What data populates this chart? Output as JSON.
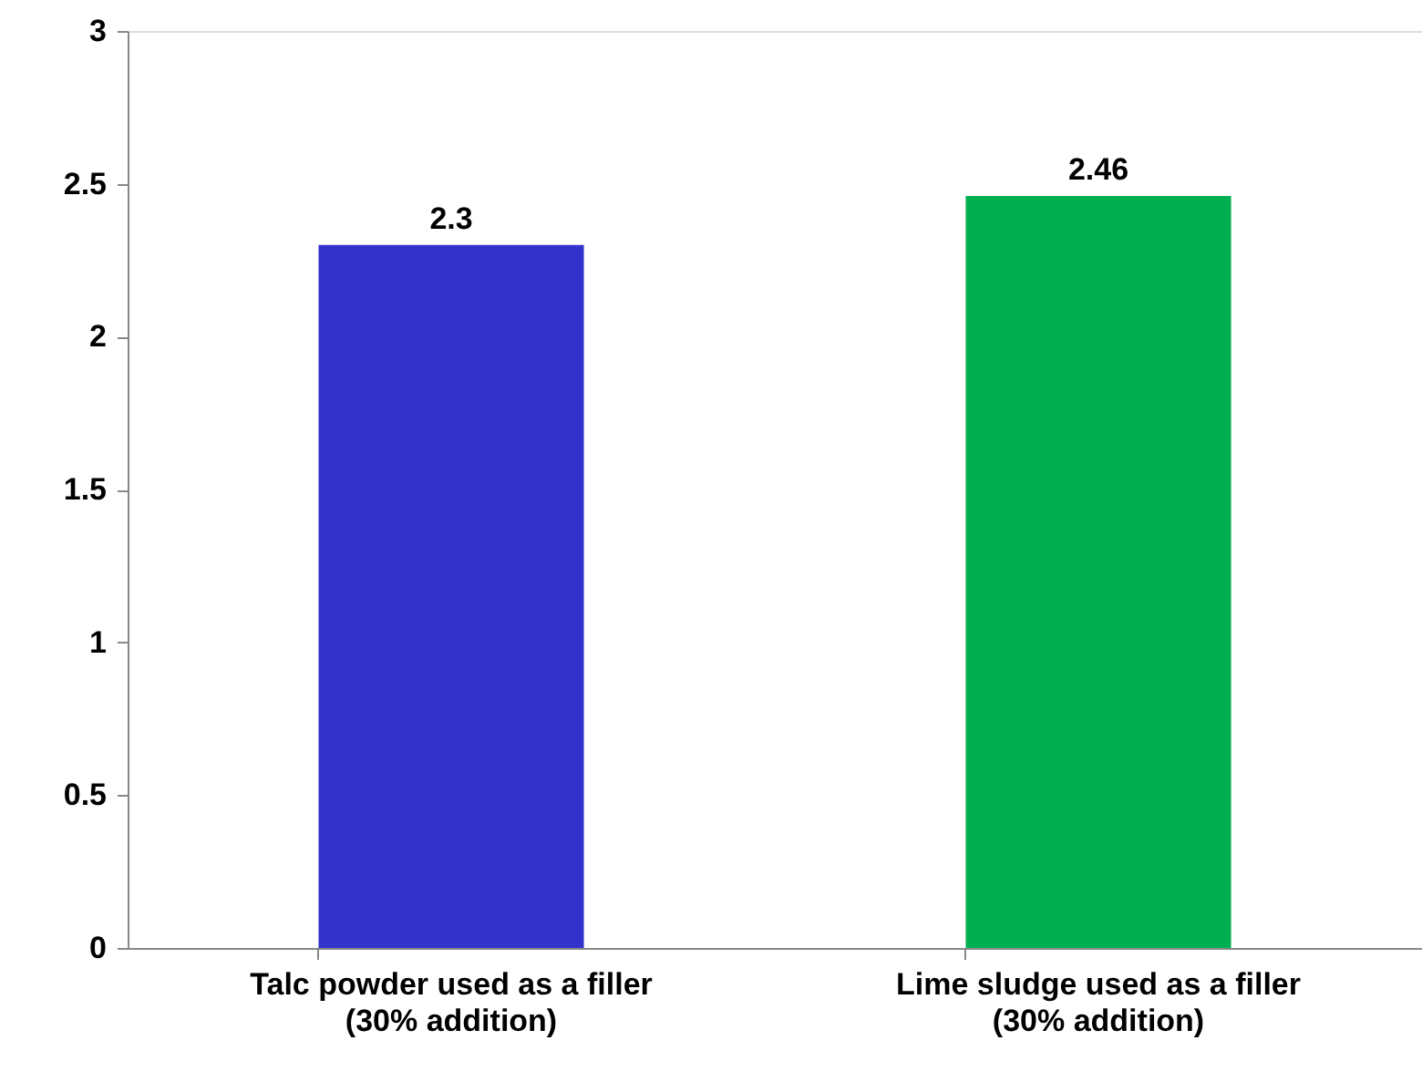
{
  "chart_data": {
    "type": "bar",
    "categories": [
      "Talc powder used as a filler\n(30% addition)",
      "Lime sludge used as a filler\n(30% addition)"
    ],
    "values": [
      2.3,
      2.46
    ],
    "colors": [
      "#3333cc",
      "#00b050"
    ],
    "ylim": [
      0,
      3
    ],
    "yticks": [
      0,
      0.5,
      1,
      1.5,
      2,
      2.5,
      3
    ],
    "data_labels": true,
    "grid": false
  }
}
